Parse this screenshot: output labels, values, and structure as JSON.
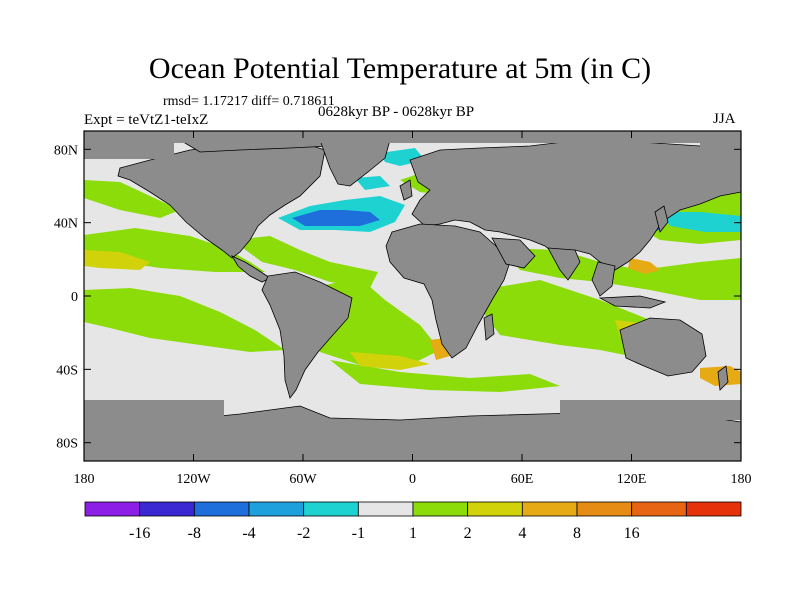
{
  "title": "Ocean Potential Temperature at 5m (in C)",
  "stats": {
    "rmsd_label": "rmsd=",
    "rmsd": "1.17217",
    "diff_label": "diff=",
    "diff": "0.718611",
    "text": "rmsd= 1.17217 diff= 0.718611"
  },
  "period": "0628kyr BP - 0628kyr BP",
  "experiment": "Expt = teVtZ1-teIxZ",
  "season": "JJA",
  "axes": {
    "x_ticks": [
      "180",
      "120W",
      "60W",
      "0",
      "60E",
      "120E",
      "180"
    ],
    "y_ticks": [
      "80N",
      "40N",
      "0",
      "40S",
      "80S"
    ]
  },
  "colorbar": {
    "labels": [
      "-16",
      "-8",
      "-4",
      "-2",
      "-1",
      "1",
      "2",
      "4",
      "8",
      "16"
    ],
    "colors": [
      "#8c1ee6",
      "#3c28d2",
      "#1e6edc",
      "#1ea0dc",
      "#1ed2d2",
      "#e6e6e6",
      "#8cdc0a",
      "#d2d20a",
      "#e6aa14",
      "#e68c14",
      "#e66414",
      "#e6320a"
    ]
  },
  "colors": {
    "land": "#8c8c8c",
    "ocean_neutral": "#e6e6e6",
    "coast": "#000000"
  },
  "chart_data": {
    "type": "map",
    "title": "Ocean Potential Temperature at 5m (in C)",
    "variable": "ocean potential temperature difference at 5m",
    "units": "C",
    "lon_range": [
      -180,
      180
    ],
    "lat_range": [
      -90,
      90
    ],
    "x_ticks_deg": [
      -180,
      -120,
      -60,
      0,
      60,
      120,
      180
    ],
    "y_ticks_deg": [
      80,
      40,
      0,
      -40,
      -80
    ],
    "contour_levels": [
      -16,
      -8,
      -4,
      -2,
      -1,
      1,
      2,
      4,
      8,
      16
    ],
    "rmsd": 1.17217,
    "diff": 0.718611
  }
}
